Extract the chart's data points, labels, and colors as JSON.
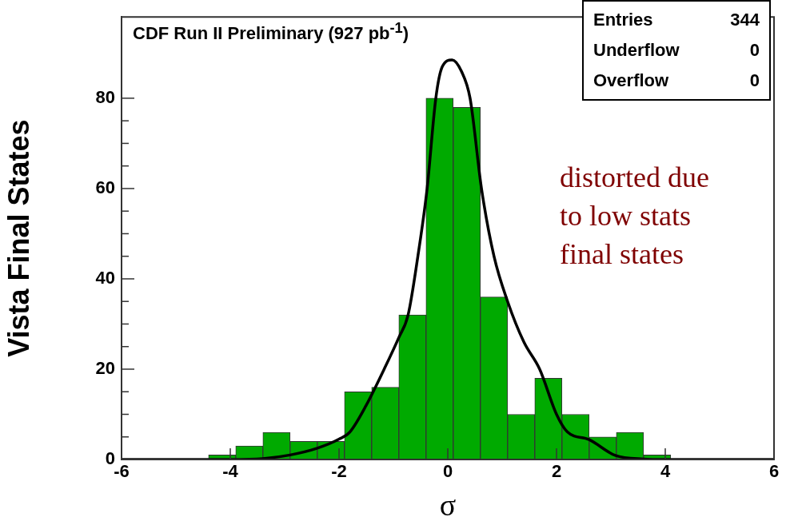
{
  "chart_data": {
    "type": "histogram",
    "title": "CDF Run II Preliminary (927 pb$^{-1}$)",
    "xlabel": "σ",
    "ylabel": "Vista Final States",
    "bins": [
      -4.4,
      -3.9,
      -3.4,
      -2.9,
      -2.4,
      -1.9,
      -1.4,
      -0.9,
      -0.4,
      0.1,
      0.6,
      1.1,
      1.6,
      2.1,
      2.6,
      3.1,
      3.6,
      4.1
    ],
    "values": [
      1,
      3,
      6,
      4,
      4,
      15,
      16,
      32,
      80,
      78,
      36,
      10,
      18,
      10,
      5,
      6,
      1
    ],
    "color": "#00aa00",
    "series": [
      {
        "type": "line",
        "color": "#000000",
        "marker": "none",
        "x": [
          -6,
          -4,
          -3.4,
          -2.9,
          -2.4,
          -2.0,
          -1.8,
          -1.5,
          -1.17,
          -0.9,
          -0.73,
          -0.55,
          -0.38,
          -0.22,
          -0.1,
          0.08,
          0.25,
          0.41,
          0.62,
          0.85,
          1.1,
          1.4,
          1.69,
          2.0,
          2.2,
          2.6,
          3.08,
          3.6,
          4,
          6
        ],
        "values": [
          0,
          0,
          0.2,
          1,
          2.5,
          4.5,
          6.1,
          12,
          20,
          27,
          32,
          45,
          60,
          80,
          87,
          88.5,
          86,
          80,
          60,
          45,
          35,
          26,
          20,
          10,
          6.1,
          4.4,
          0.9,
          0.1,
          0,
          0
        ]
      }
    ],
    "xlim": [
      -6,
      6
    ],
    "xticks": [
      -6,
      -4,
      -2,
      0,
      2,
      4,
      6
    ],
    "ylim": [
      0,
      98
    ],
    "yticks": [
      0,
      {
        "value": 5,
        "label": null
      },
      {
        "value": 10,
        "label": null
      },
      {
        "value": 15,
        "label": null
      },
      20,
      {
        "value": 25,
        "label": null
      },
      {
        "value": 30,
        "label": null
      },
      {
        "value": 35,
        "label": null
      },
      40,
      {
        "value": 45,
        "label": null
      },
      {
        "value": 50,
        "label": null
      },
      {
        "value": 55,
        "label": null
      },
      60,
      {
        "value": 65,
        "label": null
      },
      {
        "value": 70,
        "label": null
      },
      {
        "value": 75,
        "label": null
      },
      80
    ],
    "annotations": [
      "Entries 344",
      "Underflow 0",
      "Overflow 0",
      "distorted due\nto low stats\nfinal states"
    ]
  }
}
